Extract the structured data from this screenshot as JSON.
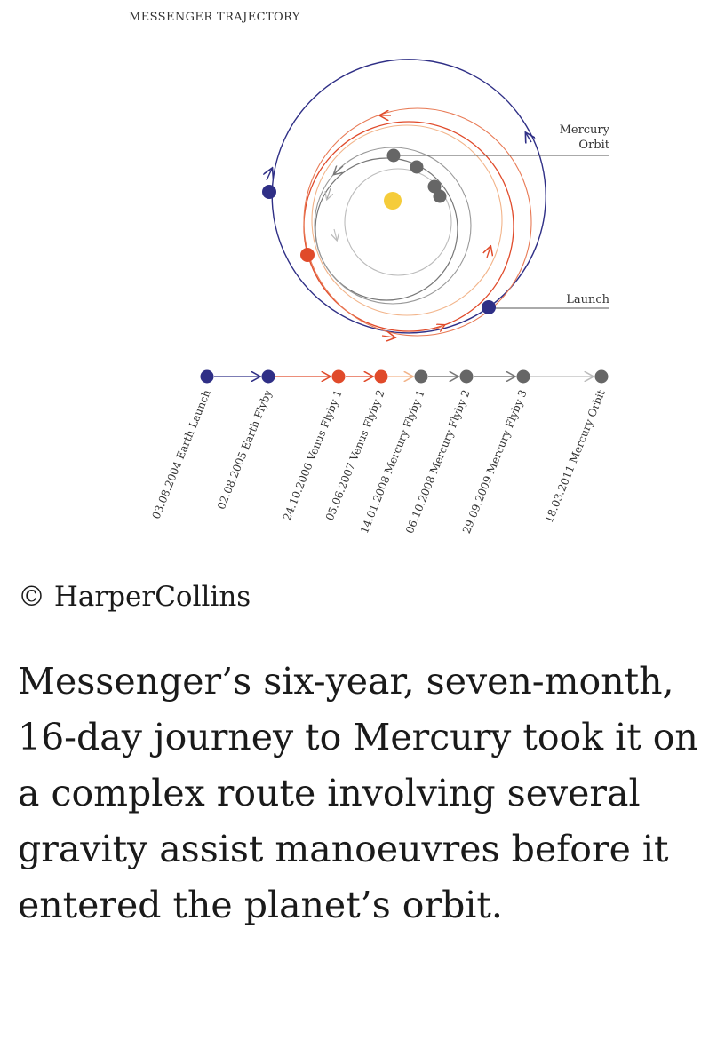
{
  "diagram": {
    "title": "MESSENGER TRAJECTORY",
    "labels": {
      "mercury_orbit_line1": "Mercury",
      "mercury_orbit_line2": "Orbit",
      "launch": "Launch"
    },
    "colors": {
      "earth": "#2f2f86",
      "venus": "#e04a2a",
      "mercury": "#666666",
      "sun": "#f5cc3a",
      "path_light": "#f2b48a",
      "path_grey": "#bbbbbb"
    },
    "timeline": [
      {
        "date_event": "03.08.2004 Earth Launch",
        "body": "earth"
      },
      {
        "date_event": "02.08.2005 Earth Flyby",
        "body": "earth"
      },
      {
        "date_event": "24.10.2006 Venus Flyby 1",
        "body": "venus"
      },
      {
        "date_event": "05.06.2007 Venus Flyby 2",
        "body": "venus"
      },
      {
        "date_event": "14.01.2008 Mercury Flyby 1",
        "body": "mercury"
      },
      {
        "date_event": "06.10.2008 Mercury Flyby 2",
        "body": "mercury"
      },
      {
        "date_event": "29.09.2009 Mercury Flyby 3",
        "body": "mercury"
      },
      {
        "date_event": "18.03.2011 Mercury Orbit",
        "body": "mercury"
      }
    ]
  },
  "credit": "© HarperCollins",
  "caption": "Messenger’s six-year, seven-month, 16-day journey to Mercury took it on a complex route involving several gravity assist manoeuvres before it entered the planet’s orbit."
}
